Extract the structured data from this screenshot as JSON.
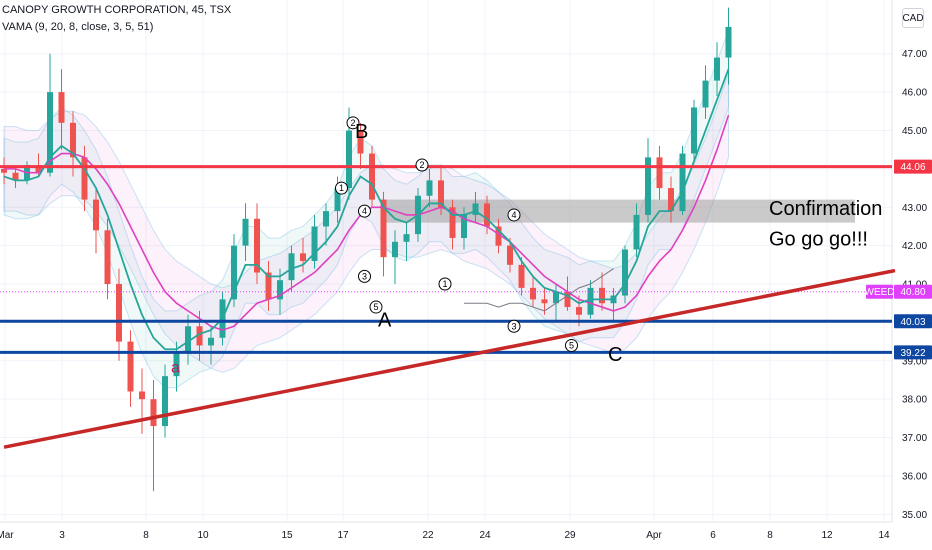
{
  "header": {
    "symbol_line": "CANOPY GROWTH CORPORATION, 45, TSX",
    "indicator_line": "VAMA (9, 20, 8, close, 3, 5, 51)",
    "currency": "CAD"
  },
  "chart_data": {
    "type": "candlestick",
    "ylim": [
      34.8,
      48.4
    ],
    "y_ticks": [
      35,
      36,
      37,
      38,
      39,
      40,
      41,
      42,
      43,
      44,
      45,
      46,
      47
    ],
    "x_tick_labels": [
      "Mar",
      "3",
      "8",
      "10",
      "15",
      "17",
      "22",
      "24",
      "29",
      "Apr",
      "6",
      "8",
      "12",
      "14"
    ],
    "series": [
      {
        "kind": "ohlc",
        "values": [
          [
            44.0,
            44.3,
            43.6,
            43.9
          ],
          [
            43.9,
            44.1,
            43.5,
            43.7
          ],
          [
            43.7,
            44.2,
            43.6,
            44.1
          ],
          [
            44.1,
            44.4,
            43.8,
            43.9
          ],
          [
            43.9,
            47.0,
            43.8,
            46.0
          ],
          [
            46.0,
            46.6,
            44.5,
            45.2
          ],
          [
            45.2,
            45.5,
            43.8,
            44.3
          ],
          [
            44.3,
            44.6,
            42.9,
            43.2
          ],
          [
            43.2,
            43.5,
            41.8,
            42.4
          ],
          [
            42.4,
            42.7,
            40.6,
            41.0
          ],
          [
            41.0,
            41.4,
            39.0,
            39.5
          ],
          [
            39.5,
            39.8,
            37.8,
            38.2
          ],
          [
            38.2,
            38.8,
            37.1,
            38.0
          ],
          [
            38.0,
            38.5,
            35.6,
            37.3
          ],
          [
            37.3,
            38.9,
            37.0,
            38.6
          ],
          [
            38.6,
            39.5,
            38.2,
            39.2
          ],
          [
            39.2,
            40.2,
            38.9,
            39.9
          ],
          [
            39.9,
            40.3,
            39.0,
            39.4
          ],
          [
            39.4,
            39.9,
            38.9,
            39.6
          ],
          [
            39.6,
            40.8,
            39.4,
            40.6
          ],
          [
            40.6,
            42.3,
            40.4,
            42.0
          ],
          [
            42.0,
            43.1,
            41.6,
            42.7
          ],
          [
            42.7,
            43.1,
            41.0,
            41.3
          ],
          [
            41.3,
            41.6,
            40.3,
            40.6
          ],
          [
            40.6,
            41.4,
            40.2,
            41.1
          ],
          [
            41.1,
            42.0,
            40.8,
            41.8
          ],
          [
            41.8,
            42.2,
            41.3,
            41.6
          ],
          [
            41.6,
            42.8,
            41.4,
            42.5
          ],
          [
            42.5,
            43.1,
            42.0,
            42.9
          ],
          [
            42.9,
            43.8,
            42.6,
            43.5
          ],
          [
            43.5,
            45.6,
            43.2,
            45.0
          ],
          [
            45.0,
            45.2,
            44.0,
            44.4
          ],
          [
            44.4,
            44.6,
            43.0,
            43.2
          ],
          [
            43.2,
            43.4,
            41.2,
            41.7
          ],
          [
            41.7,
            42.4,
            41.0,
            42.1
          ],
          [
            42.1,
            42.6,
            41.6,
            42.3
          ],
          [
            42.3,
            43.5,
            42.1,
            43.3
          ],
          [
            43.3,
            44.0,
            43.0,
            43.7
          ],
          [
            43.7,
            44.1,
            42.8,
            43.0
          ],
          [
            43.0,
            43.2,
            41.9,
            42.2
          ],
          [
            42.2,
            43.0,
            41.9,
            42.8
          ],
          [
            42.8,
            43.4,
            42.6,
            43.1
          ],
          [
            43.1,
            43.3,
            42.3,
            42.5
          ],
          [
            42.5,
            42.7,
            41.8,
            42.0
          ],
          [
            42.0,
            42.2,
            41.3,
            41.5
          ],
          [
            41.5,
            41.7,
            40.7,
            40.9
          ],
          [
            40.9,
            41.2,
            40.4,
            40.6
          ],
          [
            40.6,
            40.9,
            40.2,
            40.5
          ],
          [
            40.5,
            41.0,
            40.0,
            40.8
          ],
          [
            40.8,
            41.2,
            40.3,
            40.4
          ],
          [
            40.4,
            40.7,
            39.9,
            40.2
          ],
          [
            40.2,
            41.1,
            40.1,
            40.9
          ],
          [
            40.9,
            41.3,
            40.3,
            40.5
          ],
          [
            40.5,
            40.9,
            40.0,
            40.7
          ],
          [
            40.7,
            42.0,
            40.5,
            41.9
          ],
          [
            41.9,
            43.1,
            41.7,
            42.8
          ],
          [
            42.8,
            44.8,
            42.6,
            44.3
          ],
          [
            44.3,
            44.6,
            43.2,
            43.5
          ],
          [
            43.5,
            43.8,
            42.6,
            42.9
          ],
          [
            42.9,
            44.6,
            42.8,
            44.4
          ],
          [
            44.4,
            45.8,
            44.2,
            45.6
          ],
          [
            45.6,
            46.7,
            45.3,
            46.3
          ],
          [
            46.3,
            47.3,
            45.9,
            46.9
          ],
          [
            46.9,
            48.2,
            46.2,
            47.7
          ]
        ]
      },
      {
        "kind": "line",
        "color": "#e040c0",
        "values": [
          44.0,
          44.0,
          43.9,
          43.9,
          44.2,
          44.4,
          44.4,
          44.3,
          44.0,
          43.6,
          43.1,
          42.5,
          41.9,
          41.3,
          40.8,
          40.5,
          40.3,
          40.1,
          39.9,
          39.8,
          39.9,
          40.2,
          40.5,
          40.6,
          40.7,
          40.9,
          41.1,
          41.3,
          41.6,
          41.9,
          42.4,
          42.8,
          43.0,
          43.0,
          42.9,
          42.8,
          42.8,
          42.9,
          43.0,
          42.9,
          42.7,
          42.6,
          42.5,
          42.3,
          42.1,
          41.8,
          41.5,
          41.2,
          41.0,
          40.8,
          40.6,
          40.5,
          40.4,
          40.3,
          40.4,
          40.7,
          41.2,
          41.6,
          41.9,
          42.4,
          43.0,
          43.7,
          44.5,
          45.4
        ]
      },
      {
        "kind": "line",
        "color": "#26a69a",
        "values": [
          43.8,
          43.7,
          43.7,
          43.8,
          44.3,
          44.6,
          44.4,
          44.0,
          43.5,
          42.8,
          41.9,
          41.0,
          40.2,
          39.6,
          39.3,
          39.3,
          39.5,
          39.7,
          39.8,
          40.1,
          40.8,
          41.5,
          41.5,
          41.2,
          41.2,
          41.4,
          41.5,
          41.8,
          42.1,
          42.5,
          43.3,
          43.8,
          43.6,
          43.0,
          42.7,
          42.6,
          42.8,
          43.1,
          43.1,
          42.8,
          42.8,
          42.9,
          42.7,
          42.4,
          42.1,
          41.6,
          41.2,
          40.9,
          40.8,
          40.7,
          40.5,
          40.6,
          40.6,
          40.6,
          41.0,
          41.6,
          42.5,
          42.9,
          42.9,
          43.4,
          44.2,
          45.0,
          45.8,
          46.6
        ]
      },
      {
        "kind": "line",
        "color": "#787b86",
        "values": [
          40.5,
          40.5,
          40.5,
          40.4,
          40.5,
          40.5,
          40.4,
          40.3,
          40.5,
          40.7,
          40.9,
          41.0,
          41.2,
          41.4
        ]
      }
    ],
    "levels": [
      {
        "value": 44.06,
        "color": "#f23645",
        "label": "44.06"
      },
      {
        "value": 40.03,
        "color": "#0d47a1",
        "label": "40.03"
      },
      {
        "value": 39.22,
        "color": "#0d47a1",
        "label": "39.22"
      },
      {
        "value": 40.8,
        "color": "#e040fb",
        "label": "40.80",
        "name": "WEED"
      }
    ],
    "trendline": {
      "from": [
        0,
        36.75
      ],
      "to": [
        74,
        41.05
      ],
      "color": "#c62828"
    },
    "zone": {
      "from_bar": 33,
      "to_bar": 74,
      "y_low": 42.6,
      "y_high": 43.2,
      "color": "#9e9e9e"
    },
    "annotations": [
      {
        "text": "B",
        "kind": "big",
        "bar": 30,
        "y": 44.8
      },
      {
        "text": "A",
        "kind": "big",
        "bar": 32,
        "y": 39.9
      },
      {
        "text": "C",
        "kind": "big",
        "bar": 52,
        "y": 39.0
      },
      {
        "text": "a",
        "kind": "small",
        "bar": 14,
        "y": 38.7
      },
      {
        "text": "Confirmation",
        "kind": "conf",
        "bar": 66,
        "y": 42.8
      },
      {
        "text": "Go go go!!!",
        "kind": "conf",
        "bar": 66,
        "y": 42.0
      }
    ],
    "circles": [
      {
        "label": "2",
        "bar": 30,
        "y": 45.2
      },
      {
        "label": "1",
        "bar": 29,
        "y": 43.5
      },
      {
        "label": "4",
        "bar": 31,
        "y": 42.9
      },
      {
        "label": "3",
        "bar": 31,
        "y": 41.2
      },
      {
        "label": "5",
        "bar": 32,
        "y": 40.4
      },
      {
        "label": "2",
        "bar": 36,
        "y": 44.1
      },
      {
        "label": "4",
        "bar": 44,
        "y": 42.8
      },
      {
        "label": "1",
        "bar": 38,
        "y": 41.0
      },
      {
        "label": "3",
        "bar": 44,
        "y": 39.9
      },
      {
        "label": "5",
        "bar": 49,
        "y": 39.4
      }
    ]
  }
}
